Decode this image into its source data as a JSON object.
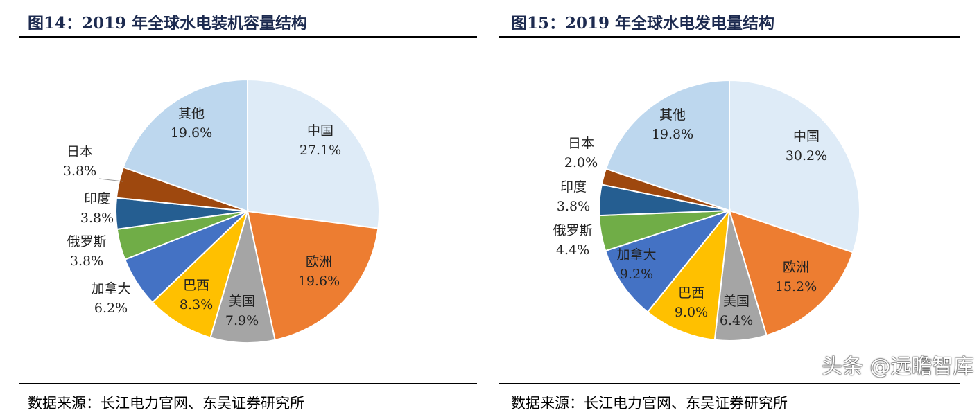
{
  "chart_data": [
    {
      "type": "pie",
      "title": "图14：2019 年全球水电装机容量结构",
      "categories": [
        "中国",
        "欧洲",
        "美国",
        "巴西",
        "加拿大",
        "俄罗斯",
        "印度",
        "日本",
        "其他"
      ],
      "values": [
        27.1,
        19.6,
        7.9,
        8.3,
        6.2,
        3.8,
        3.8,
        3.8,
        19.6
      ],
      "labels": [
        "27.1%",
        "19.6%",
        "7.9%",
        "8.3%",
        "6.2%",
        "3.8%",
        "3.8%",
        "3.8%",
        "19.6%"
      ],
      "source": "数据来源：长江电力官网、东吴证券研究所"
    },
    {
      "type": "pie",
      "title": "图15：2019 年全球水电发电量结构",
      "categories": [
        "中国",
        "欧洲",
        "美国",
        "巴西",
        "加拿大",
        "俄罗斯",
        "印度",
        "日本",
        "其他"
      ],
      "values": [
        30.2,
        15.2,
        6.4,
        9.0,
        9.2,
        4.4,
        3.8,
        2.0,
        19.8
      ],
      "labels": [
        "30.2%",
        "15.2%",
        "6.4%",
        "9.0%",
        "9.2%",
        "4.4%",
        "3.8%",
        "2.0%",
        "19.8%"
      ],
      "source": "数据来源：长江电力官网、东吴证券研究所"
    }
  ],
  "colors": [
    "#deebf7",
    "#ed7d31",
    "#a5a5a5",
    "#ffc000",
    "#4472c4",
    "#70ad47",
    "#255e91",
    "#9e480e",
    "#bdd7ee"
  ],
  "watermark": "头条 @远瞻智库"
}
